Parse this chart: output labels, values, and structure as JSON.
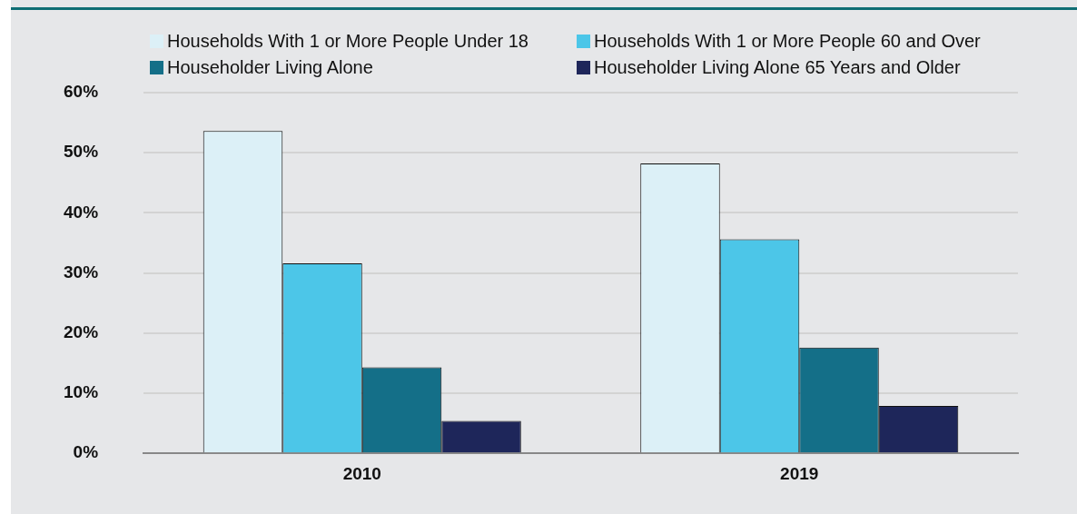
{
  "chart_data": {
    "type": "bar",
    "categories": [
      "2010",
      "2019"
    ],
    "series": [
      {
        "name": "Households With 1 or More People Under 18",
        "color": "#dcf0f7",
        "values": [
          53.6,
          48.2
        ]
      },
      {
        "name": "Households With 1 or More People 60 and Over",
        "color": "#4cc6e8",
        "values": [
          31.6,
          35.6
        ]
      },
      {
        "name": "Householder Living Alone",
        "color": "#146f88",
        "values": [
          14.3,
          17.6
        ]
      },
      {
        "name": "Householder Living Alone 65 Years and Older",
        "color": "#1e265a",
        "values": [
          5.4,
          7.9
        ]
      }
    ],
    "ylim": [
      0,
      60
    ],
    "yticks": [
      {
        "value": 0,
        "label": "0%"
      },
      {
        "value": 10,
        "label": "10%"
      },
      {
        "value": 20,
        "label": "20%"
      },
      {
        "value": 30,
        "label": "30%"
      },
      {
        "value": 40,
        "label": "40%"
      },
      {
        "value": 50,
        "label": "50%"
      },
      {
        "value": 60,
        "label": "60%"
      }
    ],
    "grid": "y",
    "legend": "top"
  }
}
